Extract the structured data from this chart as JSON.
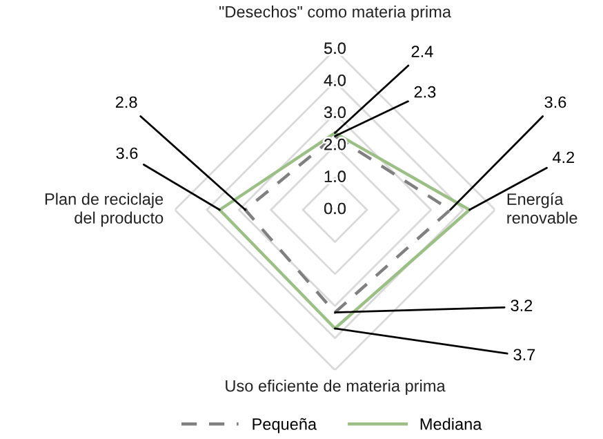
{
  "chart_data": {
    "type": "radar",
    "categories": [
      "\"Desechos\" como materia prima",
      "Energía\nrenovable",
      "Uso eficiente de materia prima",
      "Plan de reciclaje\ndel producto"
    ],
    "series": [
      {
        "name": "Pequeña",
        "color": "#808080",
        "line_style": "dashed",
        "values": [
          2.3,
          3.6,
          3.2,
          2.8
        ]
      },
      {
        "name": "Mediana",
        "color": "#9cbf86",
        "line_style": "solid",
        "values": [
          2.4,
          4.2,
          3.7,
          3.6
        ]
      }
    ],
    "ylim": [
      0,
      5
    ],
    "yticks": [
      {
        "value": 0,
        "label": "0.0"
      },
      {
        "value": 1,
        "label": "1.0"
      },
      {
        "value": 2,
        "label": "2.0"
      },
      {
        "value": 3,
        "label": "3.0"
      },
      {
        "value": 4,
        "label": "4.0"
      },
      {
        "value": 5,
        "label": "5.0"
      }
    ],
    "annotations": [
      "2.3",
      "3.6",
      "3.2",
      "2.8",
      "2.4",
      "4.2",
      "3.7",
      "3.6"
    ],
    "grid": true,
    "legend": "bottom",
    "marker": "none"
  }
}
